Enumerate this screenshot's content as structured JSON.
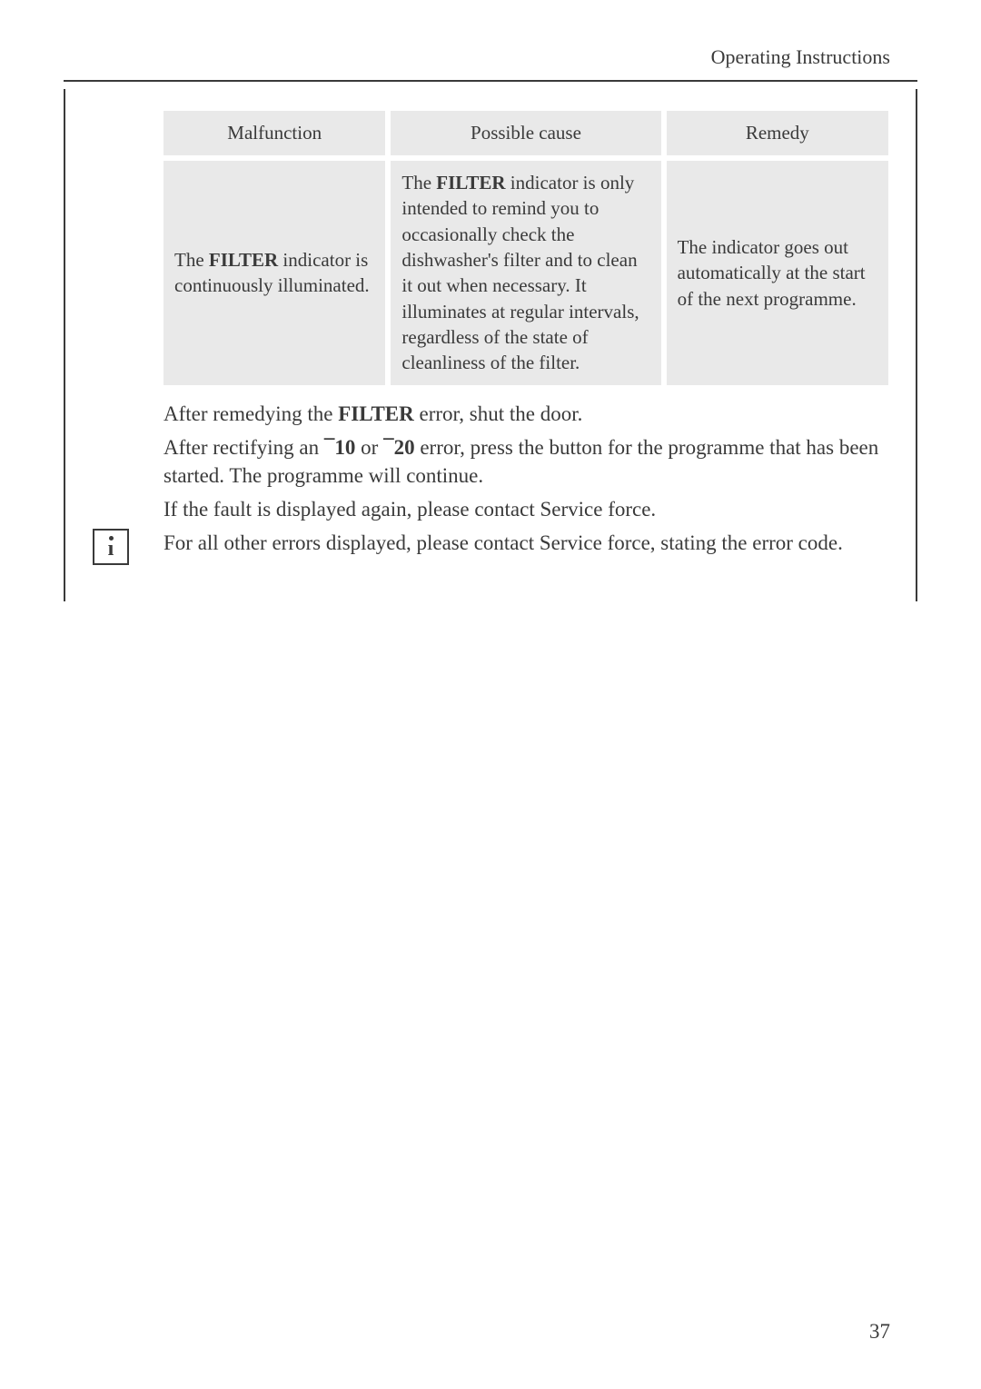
{
  "section_title": "Operating Instructions",
  "table": {
    "headers": [
      "Malfunction",
      "Possible cause",
      "Remedy"
    ],
    "row": {
      "malfunction_prefix": "The ",
      "malfunction_bold": "FILTER",
      "malfunction_suffix": " indicator is continuously illuminated.",
      "cause_prefix": "The ",
      "cause_bold": "FILTER",
      "cause_suffix": " indicator is only intended to remind you to occasionally check the dishwasher's filter and to clean it out when necessary. It illuminates at regular intervals, regardless of the state of cleanliness of the filter.",
      "remedy": "The indicator goes out automatically at the start of the next programme."
    }
  },
  "paragraphs": {
    "p1_prefix": "After remedying the ",
    "p1_bold": "FILTER",
    "p1_suffix": " error, shut the door.",
    "p2_prefix": "After rectifying an ",
    "p2_bold1": "¯10",
    "p2_mid": " or ",
    "p2_bold2": "¯20",
    "p2_suffix": " error, press the button for the programme that has been started. The programme will continue.",
    "p3": "If the fault is displayed again, please contact Service force."
  },
  "info_text": "For all other errors displayed, please contact Service force, stating the error code.",
  "page_number": "37"
}
